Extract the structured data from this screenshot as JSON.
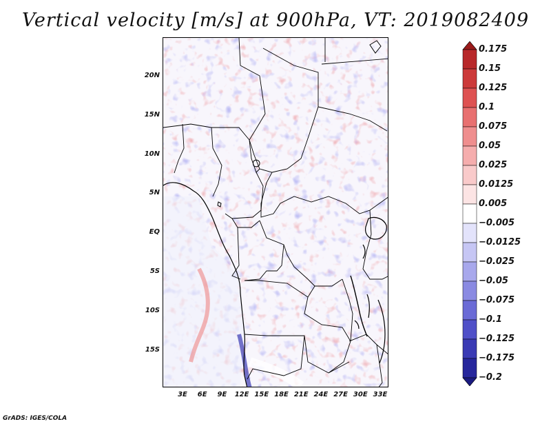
{
  "title": "Vertical velocity [m/s] at 900hPa, VT: 2019082409",
  "map": {
    "lat_labels": [
      "20N",
      "15N",
      "10N",
      "5N",
      "EQ",
      "5S",
      "10S",
      "15S"
    ],
    "lon_labels": [
      "3E",
      "6E",
      "9E",
      "12E",
      "15E",
      "18E",
      "21E",
      "24E",
      "27E",
      "30E",
      "33E"
    ]
  },
  "colorbar": {
    "labels": [
      "0.175",
      "0.15",
      "0.125",
      "0.1",
      "0.075",
      "0.05",
      "0.025",
      "0.0125",
      "0.005",
      "−0.005",
      "−0.0125",
      "−0.025",
      "−0.05",
      "−0.075",
      "−0.1",
      "−0.125",
      "−0.175",
      "−0.2"
    ],
    "colors": [
      "#9b1b1b",
      "#b8282a",
      "#cc3a3a",
      "#de5252",
      "#e87070",
      "#ef8e8e",
      "#f5adad",
      "#f9caca",
      "#fce4e4",
      "#ffffff",
      "#e3e3fb",
      "#c6c6f4",
      "#a8a8ec",
      "#8a8ae2",
      "#6b6bd6",
      "#5050c8",
      "#3a3ab4",
      "#26269c",
      "#1a1a80"
    ]
  },
  "credit": "GrADS: IGES/COLA"
}
